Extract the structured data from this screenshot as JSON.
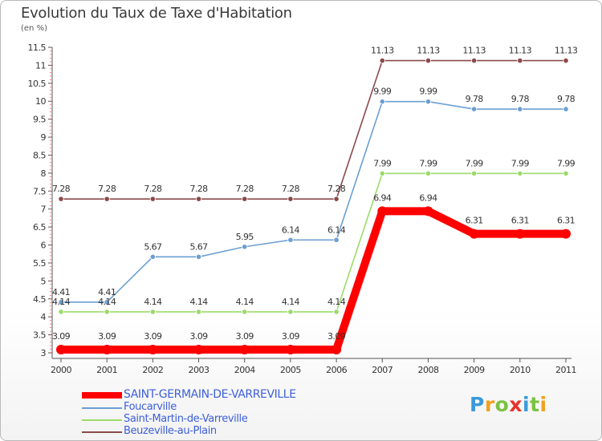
{
  "title": "Evolution du Taux de Taxe d'Habitation",
  "subtitle": "(en %)",
  "logo": {
    "letters": [
      "P",
      "r",
      "o",
      "x",
      "i",
      "t",
      "i"
    ],
    "colors": [
      "#3a9ad9",
      "#f0a020",
      "#7cc242",
      "#e8342a",
      "#3a9ad9",
      "#7cc242",
      "#f0a020"
    ]
  },
  "chart_data": {
    "type": "line",
    "x": [
      "2000",
      "2001",
      "2002",
      "2003",
      "2004",
      "2005",
      "2006",
      "2007",
      "2008",
      "2009",
      "2010",
      "2011"
    ],
    "ylim": [
      3,
      11.5
    ],
    "yticks": [
      "3",
      "3.5",
      "4",
      "4.5",
      "5",
      "5.5",
      "6",
      "6.5",
      "7",
      "7.5",
      "8",
      "8.5",
      "9",
      "9.5",
      "10",
      "10.5",
      "11",
      "11.5"
    ],
    "grid": false,
    "legend_position": "bottom-left",
    "series": [
      {
        "name": "SAINT-GERMAIN-DE-VARREVILLE",
        "color": "#ff0000",
        "values": [
          3.09,
          3.09,
          3.09,
          3.09,
          3.09,
          3.09,
          3.09,
          6.94,
          6.94,
          6.31,
          6.31,
          6.31
        ],
        "labels": [
          "3.09",
          "3.09",
          "3.09",
          "3.09",
          "3.09",
          "3.09",
          "3.09",
          "6.94",
          "6.94",
          "6.31",
          "6.31",
          "6.31"
        ]
      },
      {
        "name": "Foucarville",
        "color": "#6b9fd2",
        "values": [
          4.41,
          4.41,
          5.67,
          5.67,
          5.95,
          6.14,
          6.14,
          9.99,
          9.99,
          9.78,
          9.78,
          9.78
        ],
        "labels": [
          "4.41",
          "4.41",
          "5.67",
          "5.67",
          "5.95",
          "6.14",
          "6.14",
          "9.99",
          "9.99",
          "9.78",
          "9.78",
          "9.78"
        ]
      },
      {
        "name": "Saint-Martin-de-Varreville",
        "color": "#9bdb6a",
        "values": [
          4.14,
          4.14,
          4.14,
          4.14,
          4.14,
          4.14,
          4.14,
          7.99,
          7.99,
          7.99,
          7.99,
          7.99
        ],
        "labels": [
          "4.14",
          "4.14",
          "4.14",
          "4.14",
          "4.14",
          "4.14",
          "4.14",
          "7.99",
          "7.99",
          "7.99",
          "7.99",
          "7.99"
        ]
      },
      {
        "name": "Beuzeville-au-Plain",
        "color": "#8a4a4a",
        "values": [
          7.28,
          7.28,
          7.28,
          7.28,
          7.28,
          7.28,
          7.28,
          11.13,
          11.13,
          11.13,
          11.13,
          11.13
        ],
        "labels": [
          "7.28",
          "7.28",
          "7.28",
          "7.28",
          "7.28",
          "7.28",
          "7.28",
          "11.13",
          "11.13",
          "11.13",
          "11.13",
          "11.13"
        ]
      }
    ]
  }
}
